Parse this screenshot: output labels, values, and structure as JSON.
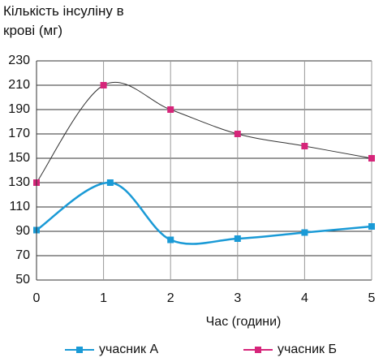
{
  "chart_data": {
    "type": "line",
    "ylabel": "Кількість інсуліну в крові (мг)",
    "xlabel": "Час (години)",
    "xlim": [
      0,
      5
    ],
    "xticks": [
      0,
      1,
      2,
      3,
      4,
      5
    ],
    "ylim": [
      50,
      230
    ],
    "yticks": [
      50,
      70,
      90,
      110,
      130,
      150,
      170,
      190,
      210,
      230
    ],
    "grid": true,
    "series": [
      {
        "name": "учасник А",
        "color": "#1a9ad6",
        "x": [
          0,
          1.1,
          2,
          3,
          4,
          5
        ],
        "values": [
          91,
          130,
          83,
          84,
          89,
          94
        ]
      },
      {
        "name": "учасник Б",
        "color": "#d6257a",
        "x": [
          0,
          1,
          2,
          3,
          4,
          5
        ],
        "values": [
          130,
          210,
          190,
          170,
          160,
          150
        ]
      }
    ]
  }
}
